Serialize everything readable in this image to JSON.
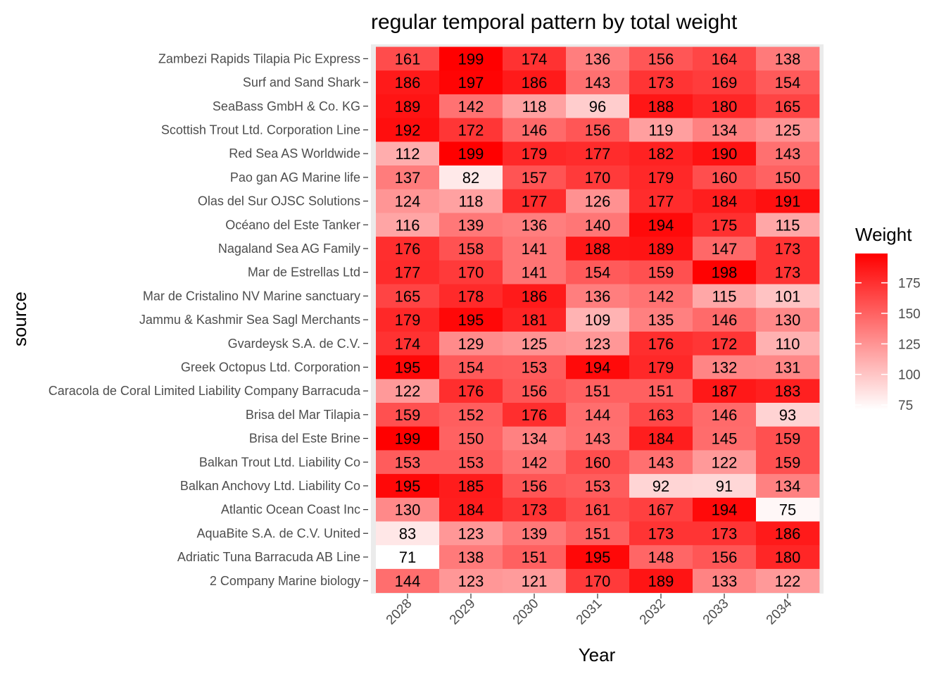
{
  "chart_data": {
    "type": "heatmap",
    "title": "regular temporal pattern by total weight",
    "xlabel": "Year",
    "ylabel": "source",
    "x": [
      "2028",
      "2029",
      "2030",
      "2031",
      "2032",
      "2033",
      "2034"
    ],
    "y": [
      "Zambezi Rapids  Tilapia Pic Express",
      "Surf and Sand Shark",
      "SeaBass  GmbH & Co. KG",
      "Scottish Trout Ltd. Corporation Line",
      "Red Sea  AS Worldwide",
      "Pao gan AG Marine life",
      "Olas del Sur OJSC Solutions",
      "Océano del Este Tanker",
      "Nagaland Sea  AG Family",
      "Mar de Estrellas Ltd",
      "Mar de Cristalino NV Marine sanctuary",
      "Jammu & Kashmir Sea  Sagl Merchants",
      "Gvardeysk S.A. de C.V.",
      "Greek Octopus Ltd. Corporation",
      "Caracola de Coral Limited Liability Company Barracuda",
      "Brisa del Mar Tilapia",
      "Brisa del Este Brine",
      "Balkan Trout Ltd. Liability Co",
      "Balkan Anchovy Ltd. Liability Co",
      "Atlantic Ocean Coast  Inc",
      "AquaBite S.A. de C.V. United",
      "Adriatic Tuna Barracuda AB Line",
      "2 Company Marine biology"
    ],
    "values": [
      [
        161,
        199,
        174,
        136,
        156,
        164,
        138
      ],
      [
        186,
        197,
        186,
        143,
        173,
        169,
        154
      ],
      [
        189,
        142,
        118,
        96,
        188,
        180,
        165
      ],
      [
        192,
        172,
        146,
        156,
        119,
        134,
        125
      ],
      [
        112,
        199,
        179,
        177,
        182,
        190,
        143
      ],
      [
        137,
        82,
        157,
        170,
        179,
        160,
        150
      ],
      [
        124,
        118,
        177,
        126,
        177,
        184,
        191
      ],
      [
        116,
        139,
        136,
        140,
        194,
        175,
        115
      ],
      [
        176,
        158,
        141,
        188,
        189,
        147,
        173
      ],
      [
        177,
        170,
        141,
        154,
        159,
        198,
        173
      ],
      [
        165,
        178,
        186,
        136,
        142,
        115,
        101
      ],
      [
        179,
        195,
        181,
        109,
        135,
        146,
        130
      ],
      [
        174,
        129,
        125,
        123,
        176,
        172,
        110
      ],
      [
        195,
        154,
        153,
        194,
        179,
        132,
        131
      ],
      [
        122,
        176,
        156,
        151,
        151,
        187,
        183
      ],
      [
        159,
        152,
        176,
        144,
        163,
        146,
        93
      ],
      [
        199,
        150,
        134,
        143,
        184,
        145,
        159
      ],
      [
        153,
        153,
        142,
        160,
        143,
        122,
        159
      ],
      [
        195,
        185,
        156,
        153,
        92,
        91,
        134
      ],
      [
        130,
        184,
        173,
        161,
        167,
        194,
        75
      ],
      [
        83,
        123,
        139,
        151,
        173,
        173,
        186
      ],
      [
        71,
        138,
        151,
        195,
        148,
        156,
        180
      ],
      [
        144,
        123,
        121,
        170,
        189,
        133,
        122
      ]
    ],
    "color_scale": {
      "low": "#ffffff",
      "high": "#ff0000",
      "domain": [
        71,
        199
      ]
    },
    "legend": {
      "title": "Weight",
      "ticks": [
        75,
        100,
        125,
        150,
        175
      ],
      "position": "right"
    },
    "grid": false
  }
}
